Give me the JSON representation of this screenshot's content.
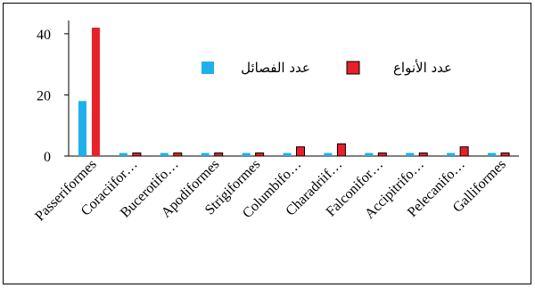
{
  "chart_data": {
    "type": "bar",
    "categories": [
      "Passeriformes",
      "Coraciifor…",
      "Bucerotifo…",
      "Apodiformes",
      "Strigiformes",
      "Columbifo…",
      "Charadriif…",
      "Falconifor…",
      "Accipitrifo…",
      "Pelecanifo…",
      "Galliformes"
    ],
    "series": [
      {
        "name": "عدد الفصائل",
        "color": "#1fb0ec",
        "values": [
          18,
          1,
          1,
          1,
          1,
          1,
          1,
          1,
          1,
          1,
          1
        ]
      },
      {
        "name": "عدد الأنواع",
        "color": "#e8202a",
        "values": [
          42,
          1,
          1,
          1,
          1,
          3,
          4,
          1,
          1,
          3,
          1
        ]
      }
    ],
    "title": "",
    "xlabel": "",
    "ylabel": "",
    "ylim": [
      0,
      42
    ],
    "yticks": [
      0,
      20,
      40
    ],
    "grid": false,
    "legend": "top"
  }
}
